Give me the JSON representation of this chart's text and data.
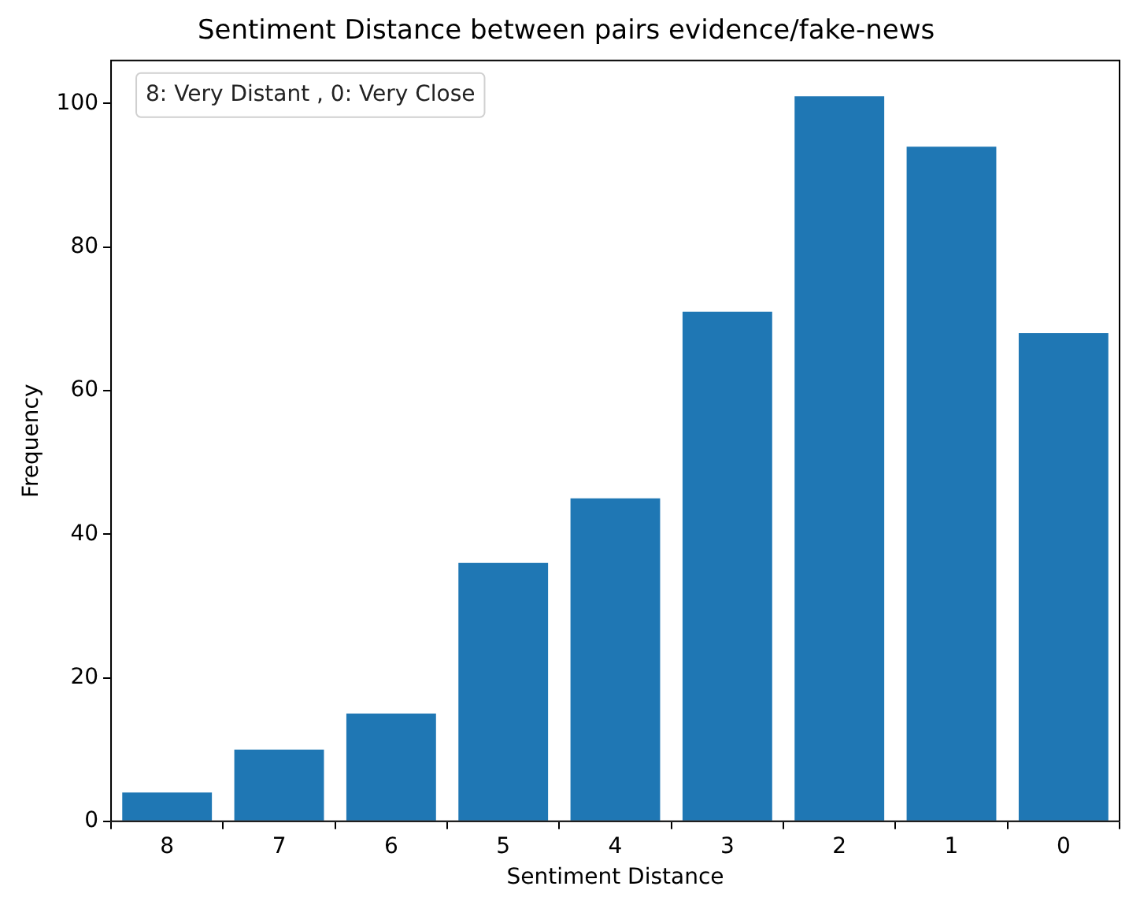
{
  "chart_data": {
    "type": "bar",
    "title": "Sentiment Distance between pairs evidence/fake-news",
    "xlabel": "Sentiment Distance",
    "ylabel": "Frequency",
    "categories": [
      "8",
      "7",
      "6",
      "5",
      "4",
      "3",
      "2",
      "1",
      "0"
    ],
    "values": [
      4,
      10,
      15,
      36,
      45,
      71,
      101,
      94,
      68
    ],
    "color": "#1f77b4",
    "ylim": [
      0,
      106
    ],
    "yticks": [
      0,
      20,
      40,
      60,
      80,
      100
    ],
    "grid": false,
    "annotations": [
      "8: Very Distant , 0: Very Close"
    ]
  }
}
